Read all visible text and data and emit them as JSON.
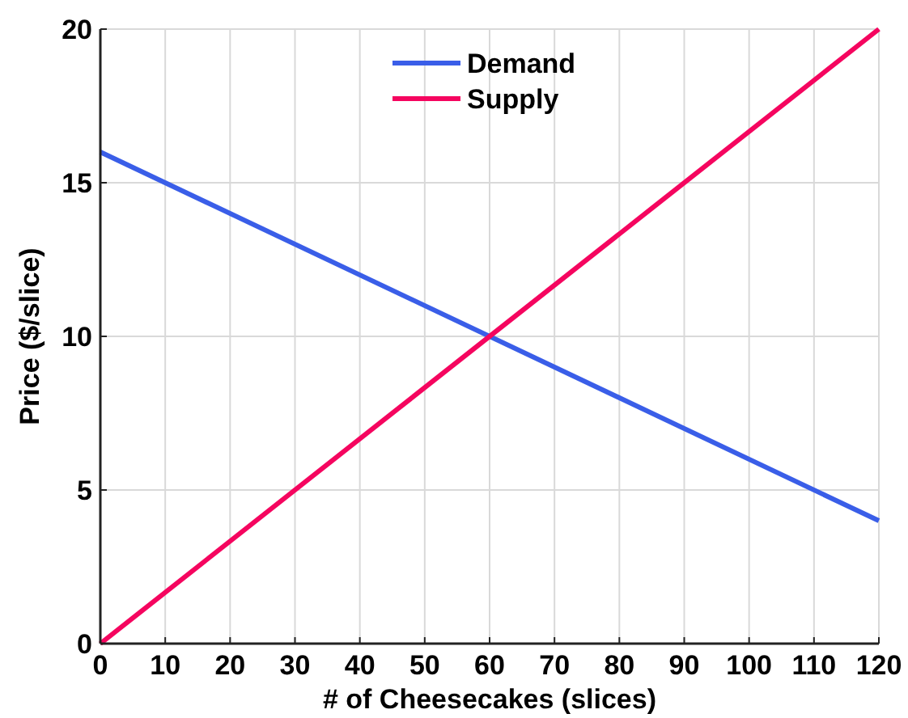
{
  "chart_data": {
    "type": "line",
    "xlabel": "# of Cheesecakes (slices)",
    "ylabel": "Price ($/slice)",
    "x": [
      0,
      120
    ],
    "series": [
      {
        "name": "Demand",
        "color": "#3a5ee8",
        "values": [
          16,
          4
        ]
      },
      {
        "name": "Supply",
        "color": "#f5055f",
        "values": [
          0,
          20
        ]
      }
    ],
    "xlim": [
      0,
      120
    ],
    "xticks": [
      0,
      10,
      20,
      30,
      40,
      50,
      60,
      70,
      80,
      90,
      100,
      110,
      120
    ],
    "ylim": [
      0,
      20
    ],
    "yticks": [
      0,
      5,
      10,
      15,
      20
    ],
    "grid": true,
    "legend": "top",
    "marker": "none",
    "line_style": "solid"
  }
}
